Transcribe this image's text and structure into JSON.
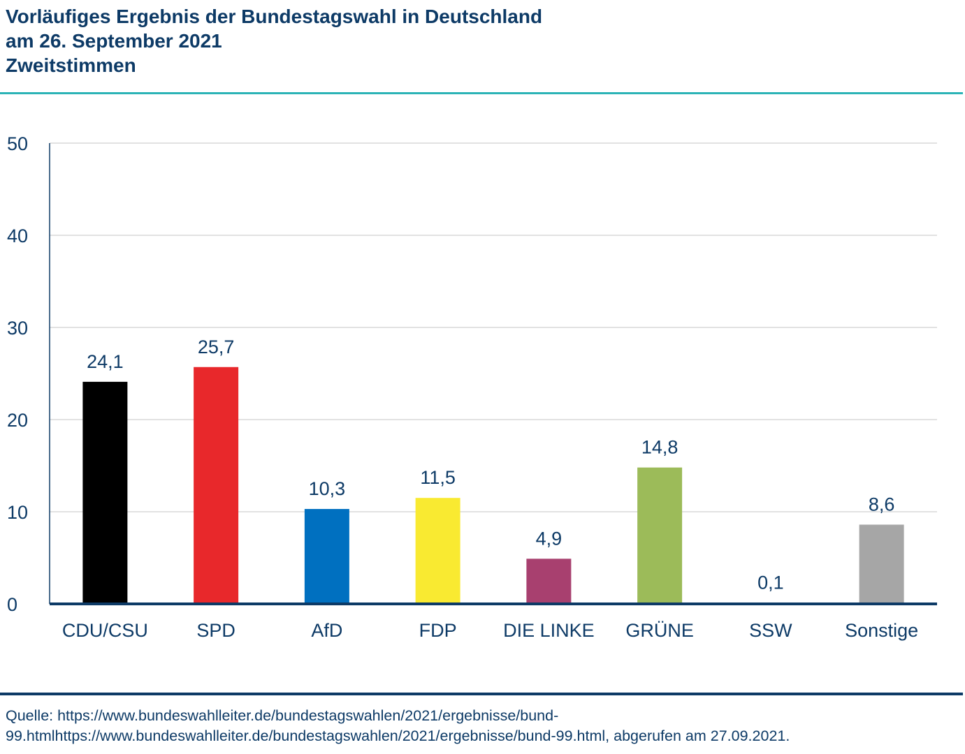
{
  "header": {
    "title_line1": "Vorläufiges Ergebnis der Bundestagswahl in Deutschland",
    "title_line2": "am 26. September 2021",
    "subtitle": "Zweitstimmen"
  },
  "colors": {
    "text": "#0d3a66",
    "accent_rule": "#2bb3b6",
    "axis": "#0d3a66",
    "grid": "#d9d9d9"
  },
  "chart_data": {
    "type": "bar",
    "title": "Vorläufiges Ergebnis der Bundestagswahl in Deutschland am 26. September 2021",
    "subtitle": "Zweitstimmen",
    "categories": [
      "CDU/CSU",
      "SPD",
      "AfD",
      "FDP",
      "DIE LINKE",
      "GRÜNE",
      "SSW",
      "Sonstige"
    ],
    "values": [
      24.1,
      25.7,
      10.3,
      11.5,
      4.9,
      14.8,
      0.1,
      8.6
    ],
    "data_labels": [
      "24,1",
      "25,7",
      "10,3",
      "11,5",
      "4,9",
      "14,8",
      "0,1",
      "8,6"
    ],
    "bar_colors": [
      "#000000",
      "#e8282b",
      "#0070c0",
      "#f9ea31",
      "#a8406f",
      "#9cbb59",
      "#ffffff",
      "#a6a6a6"
    ],
    "ylim": [
      0,
      50
    ],
    "yticks": [
      0,
      10,
      20,
      30,
      40,
      50
    ],
    "ytick_labels": [
      "0",
      "10",
      "20",
      "30",
      "40",
      "50"
    ],
    "grid": true,
    "xlabel": "",
    "ylabel": ""
  },
  "footer": {
    "source_line1": "Quelle: https://www.bundeswahlleiter.de/bundestagswahlen/2021/ergebnisse/bund-",
    "source_line2": "99.htmlhttps://www.bundeswahlleiter.de/bundestagswahlen/2021/ergebnisse/bund-99.html, abgerufen am 27.09.2021."
  }
}
